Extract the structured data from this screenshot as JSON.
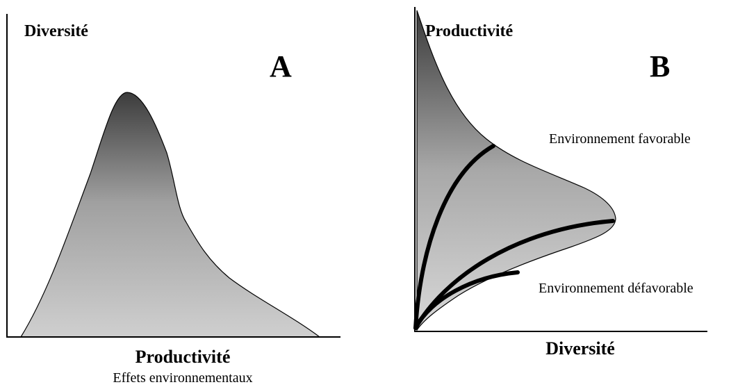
{
  "panel_a": {
    "label": "A",
    "y_axis": "Diversité",
    "x_axis": "Productivité",
    "caption": "Effets environnementaux"
  },
  "panel_b": {
    "label": "B",
    "y_axis": "Productivité",
    "x_axis": "Diversité",
    "annotations": [
      "Environnement favorable",
      "Environnement défavorable"
    ]
  }
}
